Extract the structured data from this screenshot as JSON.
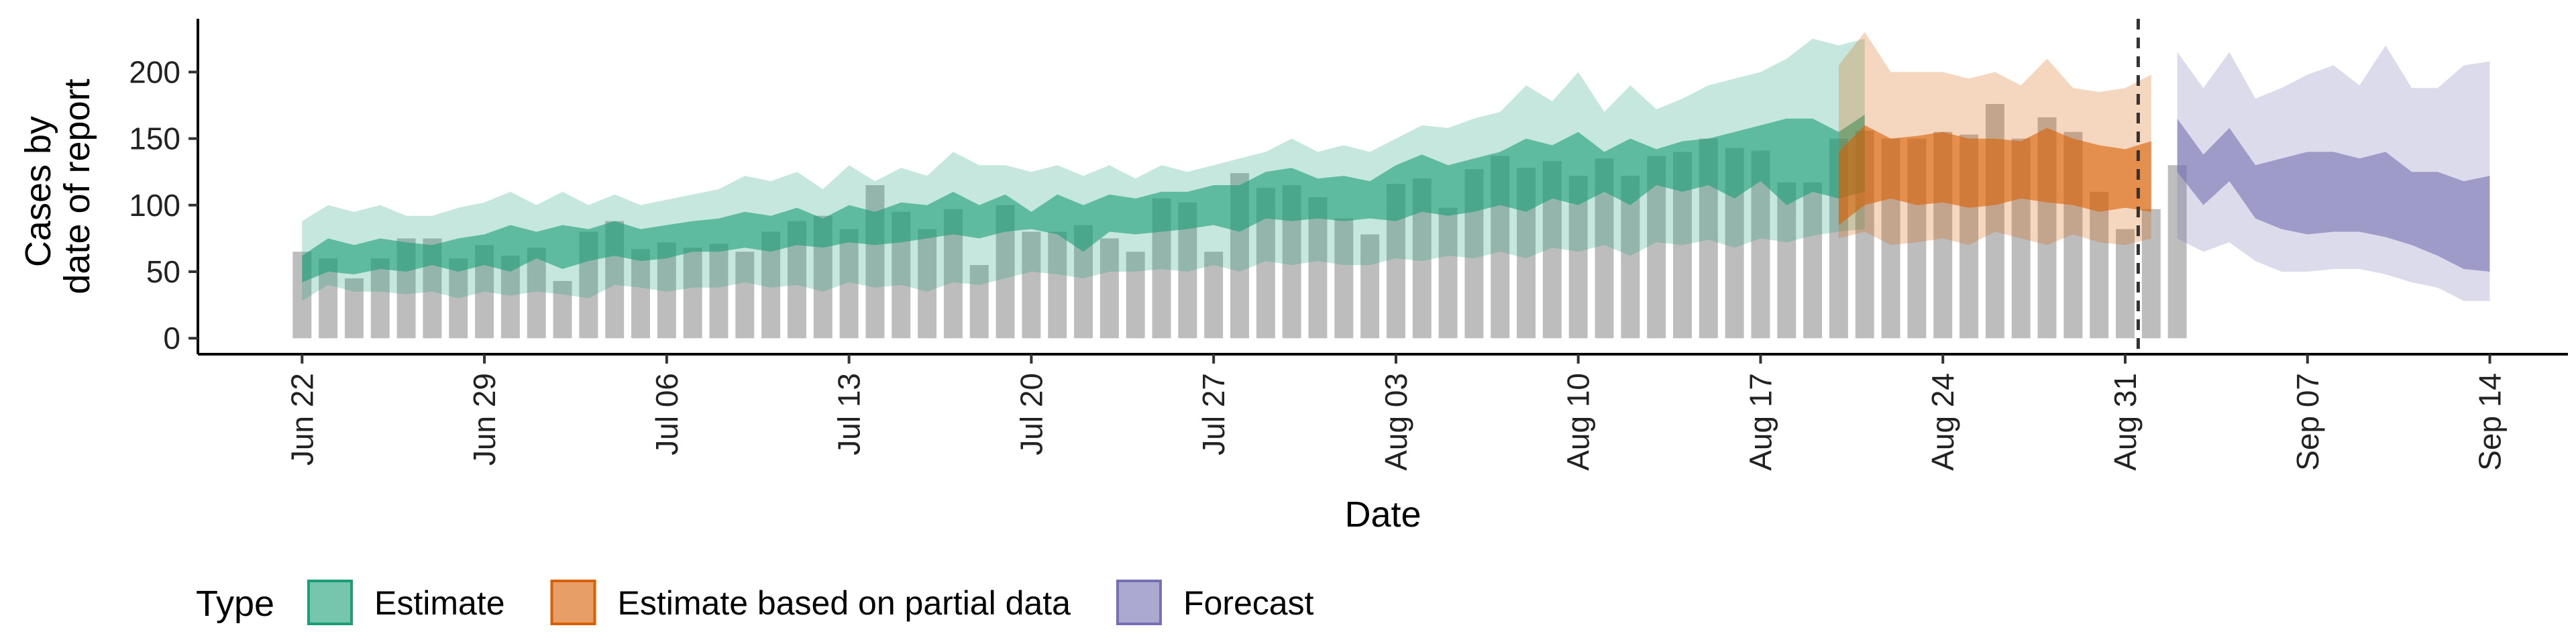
{
  "chart_data": {
    "type": "area",
    "xlabel": "Date",
    "ylabel_lines": [
      "Cases by",
      "date of report"
    ],
    "x_ticks": [
      "Jun 22",
      "Jun 29",
      "Jul 06",
      "Jul 13",
      "Jul 20",
      "Jul 27",
      "Aug 03",
      "Aug 10",
      "Aug 17",
      "Aug 24",
      "Aug 31",
      "Sep 07",
      "Sep 14"
    ],
    "y_ticks": [
      0,
      50,
      100,
      150,
      200
    ],
    "ylim": [
      -12,
      240
    ],
    "xlim": [
      "2020-06-18",
      "2020-09-17"
    ],
    "vline_date": "2020-09-01",
    "legend": {
      "title": "Type",
      "placement": "bottom-left",
      "items": [
        {
          "label": "Estimate",
          "color": "#1b9e77"
        },
        {
          "label": "Estimate based on partial data",
          "color": "#d95f02"
        },
        {
          "label": "Forecast",
          "color": "#7570b3"
        }
      ]
    },
    "colors": {
      "bars": "#bdbdbd",
      "estimate": "#1b9e77",
      "partial": "#d95f02",
      "forecast": "#7570b3",
      "vline": "#333333"
    },
    "bars": {
      "start_date": "2020-06-22",
      "values": [
        65,
        60,
        45,
        60,
        75,
        75,
        60,
        70,
        62,
        68,
        43,
        80,
        88,
        67,
        72,
        68,
        71,
        65,
        80,
        88,
        92,
        82,
        115,
        95,
        82,
        97,
        55,
        100,
        80,
        80,
        85,
        75,
        65,
        105,
        102,
        65,
        124,
        113,
        115,
        106,
        90,
        78,
        116,
        120,
        98,
        127,
        137,
        128,
        133,
        122,
        135,
        122,
        137,
        140,
        150,
        143,
        141,
        117,
        117,
        150,
        156,
        150,
        150,
        155,
        153,
        176,
        150,
        166,
        155,
        110,
        82,
        97,
        130
      ]
    },
    "bands": [
      {
        "type": "Estimate",
        "start_date": "2020-06-22",
        "lower90": [
          28,
          40,
          35,
          35,
          33,
          35,
          30,
          35,
          32,
          35,
          33,
          30,
          40,
          38,
          35,
          38,
          38,
          42,
          38,
          40,
          35,
          42,
          38,
          40,
          35,
          42,
          40,
          45,
          50,
          48,
          45,
          50,
          50,
          52,
          50,
          55,
          50,
          58,
          55,
          58,
          55,
          55,
          60,
          58,
          62,
          60,
          65,
          60,
          68,
          65,
          70,
          62,
          72,
          70,
          74,
          68,
          75,
          72,
          77,
          80,
          82
        ],
        "upper90": [
          88,
          100,
          95,
          100,
          92,
          92,
          98,
          102,
          110,
          100,
          110,
          100,
          108,
          100,
          104,
          108,
          112,
          122,
          118,
          125,
          112,
          130,
          118,
          128,
          122,
          140,
          130,
          130,
          125,
          130,
          122,
          130,
          120,
          130,
          125,
          130,
          135,
          140,
          150,
          140,
          145,
          140,
          150,
          160,
          158,
          165,
          170,
          190,
          178,
          200,
          170,
          190,
          172,
          180,
          190,
          195,
          200,
          210,
          225,
          220,
          225
        ],
        "lower50": [
          42,
          50,
          48,
          52,
          50,
          55,
          50,
          55,
          50,
          60,
          52,
          58,
          62,
          58,
          60,
          65,
          65,
          68,
          65,
          70,
          68,
          72,
          70,
          72,
          75,
          78,
          75,
          80,
          82,
          78,
          65,
          80,
          78,
          80,
          82,
          85,
          80,
          90,
          88,
          90,
          88,
          90,
          88,
          95,
          92,
          95,
          100,
          95,
          105,
          100,
          110,
          100,
          115,
          110,
          115,
          105,
          118,
          100,
          110,
          105,
          110
        ],
        "upper50": [
          62,
          75,
          70,
          75,
          72,
          70,
          75,
          78,
          85,
          80,
          85,
          82,
          88,
          82,
          85,
          88,
          90,
          95,
          92,
          98,
          90,
          100,
          95,
          102,
          100,
          110,
          100,
          108,
          95,
          108,
          100,
          108,
          105,
          110,
          110,
          115,
          115,
          125,
          128,
          120,
          122,
          118,
          130,
          138,
          130,
          135,
          140,
          150,
          145,
          155,
          140,
          150,
          142,
          148,
          150,
          155,
          160,
          165,
          165,
          155,
          168
        ]
      },
      {
        "type": "Estimate based on partial data",
        "start_date": "2020-08-20",
        "lower90": [
          75,
          80,
          70,
          72,
          75,
          70,
          80,
          75,
          70,
          78,
          72,
          70,
          75
        ],
        "upper90": [
          205,
          230,
          200,
          200,
          200,
          195,
          200,
          190,
          210,
          188,
          185,
          188,
          198
        ],
        "lower50": [
          85,
          100,
          105,
          100,
          102,
          98,
          100,
          105,
          102,
          100,
          95,
          98,
          95
        ],
        "upper50": [
          140,
          160,
          150,
          152,
          155,
          150,
          150,
          148,
          158,
          150,
          145,
          142,
          148
        ]
      },
      {
        "type": "Forecast",
        "start_date": "2020-09-02",
        "lower90": [
          75,
          65,
          72,
          58,
          50,
          50,
          52,
          52,
          48,
          42,
          38,
          28,
          28
        ],
        "upper90": [
          215,
          188,
          215,
          180,
          188,
          198,
          205,
          190,
          220,
          188,
          188,
          205,
          208
        ],
        "lower50": [
          125,
          100,
          118,
          90,
          82,
          78,
          80,
          80,
          76,
          70,
          62,
          52,
          50
        ],
        "upper50": [
          165,
          138,
          158,
          130,
          135,
          140,
          140,
          135,
          140,
          125,
          125,
          118,
          122
        ]
      }
    ]
  }
}
